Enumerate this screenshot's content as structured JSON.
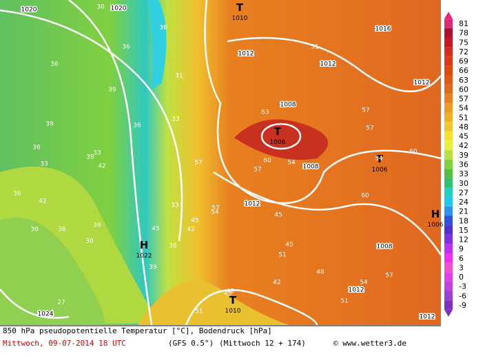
{
  "map": {
    "centers": [
      {
        "symbol": "T",
        "value": "1010"
      },
      {
        "symbol": "H",
        "value": "1022"
      },
      {
        "symbol": "T",
        "value": "1006"
      },
      {
        "symbol": "T",
        "value": "1010"
      },
      {
        "symbol": "T",
        "value": "1006"
      },
      {
        "symbol": "H",
        "value": "1006"
      }
    ],
    "isobar_labels": [
      "1020",
      "1020",
      "1012",
      "1016",
      "1012",
      "1012",
      "1008",
      "1008",
      "1012",
      "1008",
      "1012",
      "1024",
      "1012"
    ],
    "temperature_labels": [
      "30",
      "36",
      "39",
      "36",
      "39",
      "36",
      "33",
      "36",
      "42",
      "30",
      "36",
      "39",
      "42",
      "33",
      "39",
      "36",
      "31",
      "33",
      "36",
      "57",
      "54",
      "45",
      "42",
      "45",
      "60",
      "63",
      "57",
      "60",
      "54",
      "51",
      "57",
      "54",
      "57",
      "60",
      "51",
      "48",
      "54",
      "51",
      "45",
      "48",
      "42",
      "45",
      "39",
      "36",
      "33",
      "30",
      "27",
      "51",
      "57",
      "48",
      "57"
    ]
  },
  "legend": {
    "ticks": [
      81,
      78,
      75,
      72,
      69,
      66,
      63,
      60,
      57,
      54,
      51,
      48,
      45,
      42,
      39,
      36,
      33,
      30,
      27,
      24,
      21,
      18,
      15,
      12,
      9,
      6,
      3,
      0,
      -3,
      -6,
      -9
    ],
    "colors": [
      "#e0287a",
      "#b01030",
      "#c81828",
      "#d82820",
      "#e03818",
      "#e04810",
      "#e05818",
      "#e06a18",
      "#e88020",
      "#f09828",
      "#f0b028",
      "#f0c830",
      "#f8e030",
      "#e8f040",
      "#b8e040",
      "#80d040",
      "#50c040",
      "#30c070",
      "#20d0c0",
      "#20c8f0",
      "#3090f0",
      "#3050e0",
      "#5030d0",
      "#8030e0",
      "#c030f0",
      "#f030f0",
      "#f050d0",
      "#e040e8",
      "#c040e0",
      "#a040d0",
      "#8030c0"
    ]
  },
  "footer": {
    "title": "850 hPa pseudopotentielle Temperatur [°C], Bodendruck [hPa]",
    "date": "Mittwoch, 09-07-2014   18 UTC",
    "model": "(GFS 0.5°)",
    "run": "(Mittwoch 12 + 174)",
    "credit": "© www.wetter3.de"
  }
}
